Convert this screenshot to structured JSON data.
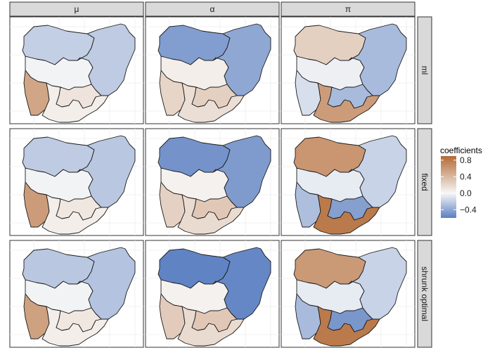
{
  "columns": [
    {
      "key": "mu",
      "label": "μ"
    },
    {
      "key": "alpha",
      "label": "α"
    },
    {
      "key": "pi",
      "label": "π"
    }
  ],
  "rows": [
    {
      "key": "ml",
      "label": "ml"
    },
    {
      "key": "fixed",
      "label": "fixed"
    },
    {
      "key": "shrunk_optimal",
      "label": "shrunk optimal"
    }
  ],
  "legend": {
    "title": "coefficients",
    "tick_labels": [
      "0.8",
      "0.4",
      "0.0",
      "−0.4"
    ],
    "tick_values": [
      0.8,
      0.4,
      0.0,
      -0.4
    ],
    "range": [
      -0.6,
      0.9
    ],
    "low_color": "#5b7fc1",
    "mid_color": "#f7f7f7",
    "high_color": "#b46a35"
  },
  "regions": [
    "north_west",
    "north_east",
    "north_central",
    "south_west",
    "south_south",
    "south_east"
  ],
  "values": {
    "ml": {
      "mu": {
        "north_west": -0.2,
        "north_east": -0.22,
        "north_central": -0.02,
        "south_west": 0.52,
        "south_south": 0.06,
        "south_east": 0.12
      },
      "alpha": {
        "north_west": -0.45,
        "north_east": -0.4,
        "north_central": 0.06,
        "south_west": 0.22,
        "south_south": 0.16,
        "south_east": 0.25
      },
      "pi": {
        "north_west": 0.25,
        "north_east": -0.3,
        "north_central": -0.04,
        "south_west": -0.12,
        "south_south": 0.58,
        "south_east": -0.3
      }
    },
    "fixed": {
      "mu": {
        "north_west": -0.22,
        "north_east": -0.24,
        "north_central": -0.02,
        "south_west": 0.58,
        "south_south": 0.06,
        "south_east": 0.1
      },
      "alpha": {
        "north_west": -0.5,
        "north_east": -0.46,
        "north_central": 0.04,
        "south_west": 0.24,
        "south_south": 0.18,
        "south_east": 0.3
      },
      "pi": {
        "north_west": 0.62,
        "north_east": -0.18,
        "north_central": -0.06,
        "south_west": -0.28,
        "south_south": 0.8,
        "south_east": -0.44
      }
    },
    "shrunk_optimal": {
      "mu": {
        "north_west": -0.24,
        "north_east": -0.26,
        "north_central": -0.02,
        "south_west": 0.55,
        "south_south": 0.06,
        "south_east": 0.1
      },
      "alpha": {
        "north_west": -0.58,
        "north_east": -0.56,
        "north_central": 0.04,
        "south_west": 0.28,
        "south_south": 0.18,
        "south_east": 0.3
      },
      "pi": {
        "north_west": 0.6,
        "north_east": -0.18,
        "north_central": -0.06,
        "south_west": -0.3,
        "south_south": 0.8,
        "south_east": -0.48
      }
    }
  }
}
